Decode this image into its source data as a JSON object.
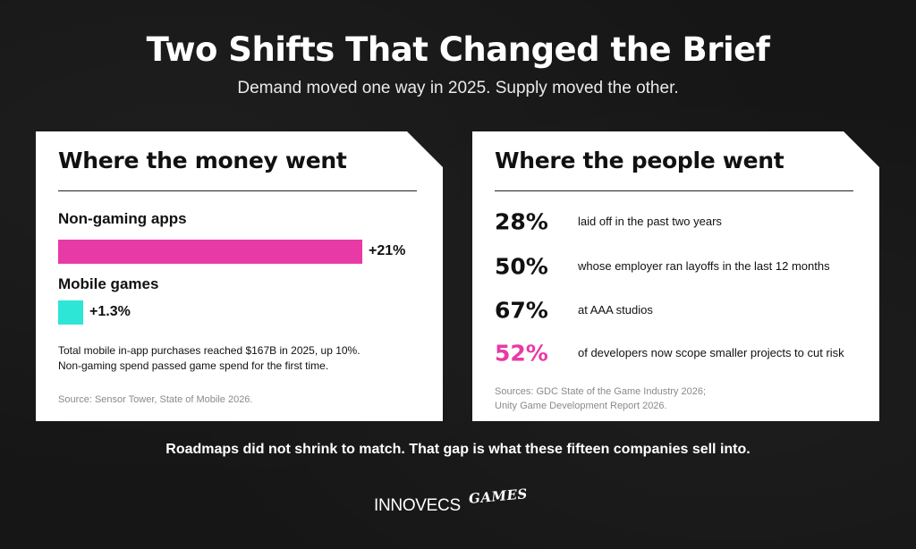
{
  "header": {
    "title": "Two Shifts That Changed the Brief",
    "subtitle": "Demand moved one way in 2025. Supply moved the other."
  },
  "left_card": {
    "heading": "Where the money went",
    "bars": [
      {
        "label": "Non-gaming apps",
        "value": "+21%",
        "growth_pct": 21,
        "color": "#e83aa6"
      },
      {
        "label": "Mobile games",
        "value": "+1.3%",
        "growth_pct": 1.3,
        "color": "#2ee6d6"
      }
    ],
    "note_line1": "Total mobile in-app purchases reached $167B in 2025, up 10%.",
    "note_line2": "Non-gaming spend passed game spend for the first time.",
    "source": "Source: Sensor Tower, State of Mobile 2026."
  },
  "right_card": {
    "heading": "Where the people went",
    "stats": [
      {
        "value": "28%",
        "text": "laid off in the past two years",
        "color": "#111111"
      },
      {
        "value": "50%",
        "text": "whose employer ran layoffs in the last 12 months",
        "color": "#111111"
      },
      {
        "value": "67%",
        "text": "at AAA studios",
        "color": "#111111"
      },
      {
        "value": "52%",
        "text": "of developers now scope smaller projects to cut risk",
        "color": "#e83aa6"
      }
    ],
    "source_line1": "Sources: GDC State of the Game Industry 2026;",
    "source_line2": "Unity Game Development Report 2026."
  },
  "footer": {
    "text": "Roadmaps did not shrink to match. That gap is what these fifteen companies sell into."
  },
  "logo": {
    "main": "INNOVECS",
    "sub": "GAMES"
  }
}
